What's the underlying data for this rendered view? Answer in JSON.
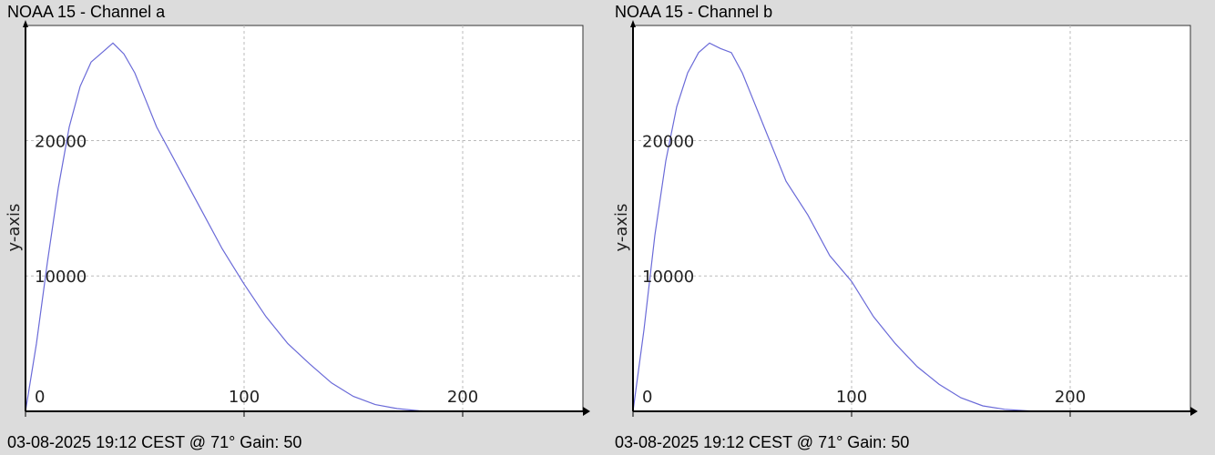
{
  "colors": {
    "background": "#dcdcdc",
    "plot_area": "#ffffff",
    "line": "#6a6ad8",
    "grid": "#bbbbbb",
    "axis": "#000000"
  },
  "panels": [
    {
      "title": "NOAA 15 - Channel a",
      "footer": "03-08-2025 19:12 CEST @ 71° Gain: 50"
    },
    {
      "title": "NOAA 15 - Channel b",
      "footer": "03-08-2025 19:12 CEST @ 71° Gain: 50"
    }
  ],
  "chart_data": [
    {
      "type": "line",
      "title": "NOAA 15 - Channel a",
      "xlabel": "",
      "ylabel": "y-axis",
      "xlim": [
        0,
        255
      ],
      "ylim": [
        0,
        28500
      ],
      "xticks": [
        0,
        100,
        200
      ],
      "yticks": [
        10000,
        20000
      ],
      "grid": true,
      "series": [
        {
          "x": [
            0,
            5,
            10,
            15,
            20,
            25,
            30,
            35,
            40,
            45,
            50,
            55,
            60,
            65,
            70,
            80,
            90,
            100,
            110,
            120,
            130,
            140,
            150,
            160,
            170,
            180,
            185
          ],
          "y": [
            0,
            5000,
            11000,
            16500,
            21000,
            24000,
            25800,
            26500,
            27200,
            26400,
            25000,
            23000,
            21000,
            19500,
            18000,
            15000,
            12000,
            9400,
            7000,
            5000,
            3500,
            2100,
            1100,
            500,
            200,
            50,
            0
          ]
        }
      ]
    },
    {
      "type": "line",
      "title": "NOAA 15 - Channel b",
      "xlabel": "",
      "ylabel": "y-axis",
      "xlim": [
        0,
        255
      ],
      "ylim": [
        0,
        28500
      ],
      "xticks": [
        0,
        100,
        200
      ],
      "yticks": [
        10000,
        20000
      ],
      "grid": true,
      "series": [
        {
          "x": [
            0,
            5,
            10,
            15,
            20,
            25,
            30,
            35,
            40,
            45,
            50,
            55,
            60,
            65,
            70,
            80,
            90,
            100,
            110,
            120,
            130,
            140,
            150,
            160,
            170,
            180,
            185
          ],
          "y": [
            0,
            6000,
            13000,
            18500,
            22500,
            25000,
            26500,
            27200,
            26800,
            26500,
            25000,
            23000,
            21000,
            19000,
            17000,
            14500,
            11500,
            9600,
            7000,
            5000,
            3300,
            2000,
            1000,
            400,
            150,
            50,
            0
          ]
        }
      ]
    }
  ]
}
